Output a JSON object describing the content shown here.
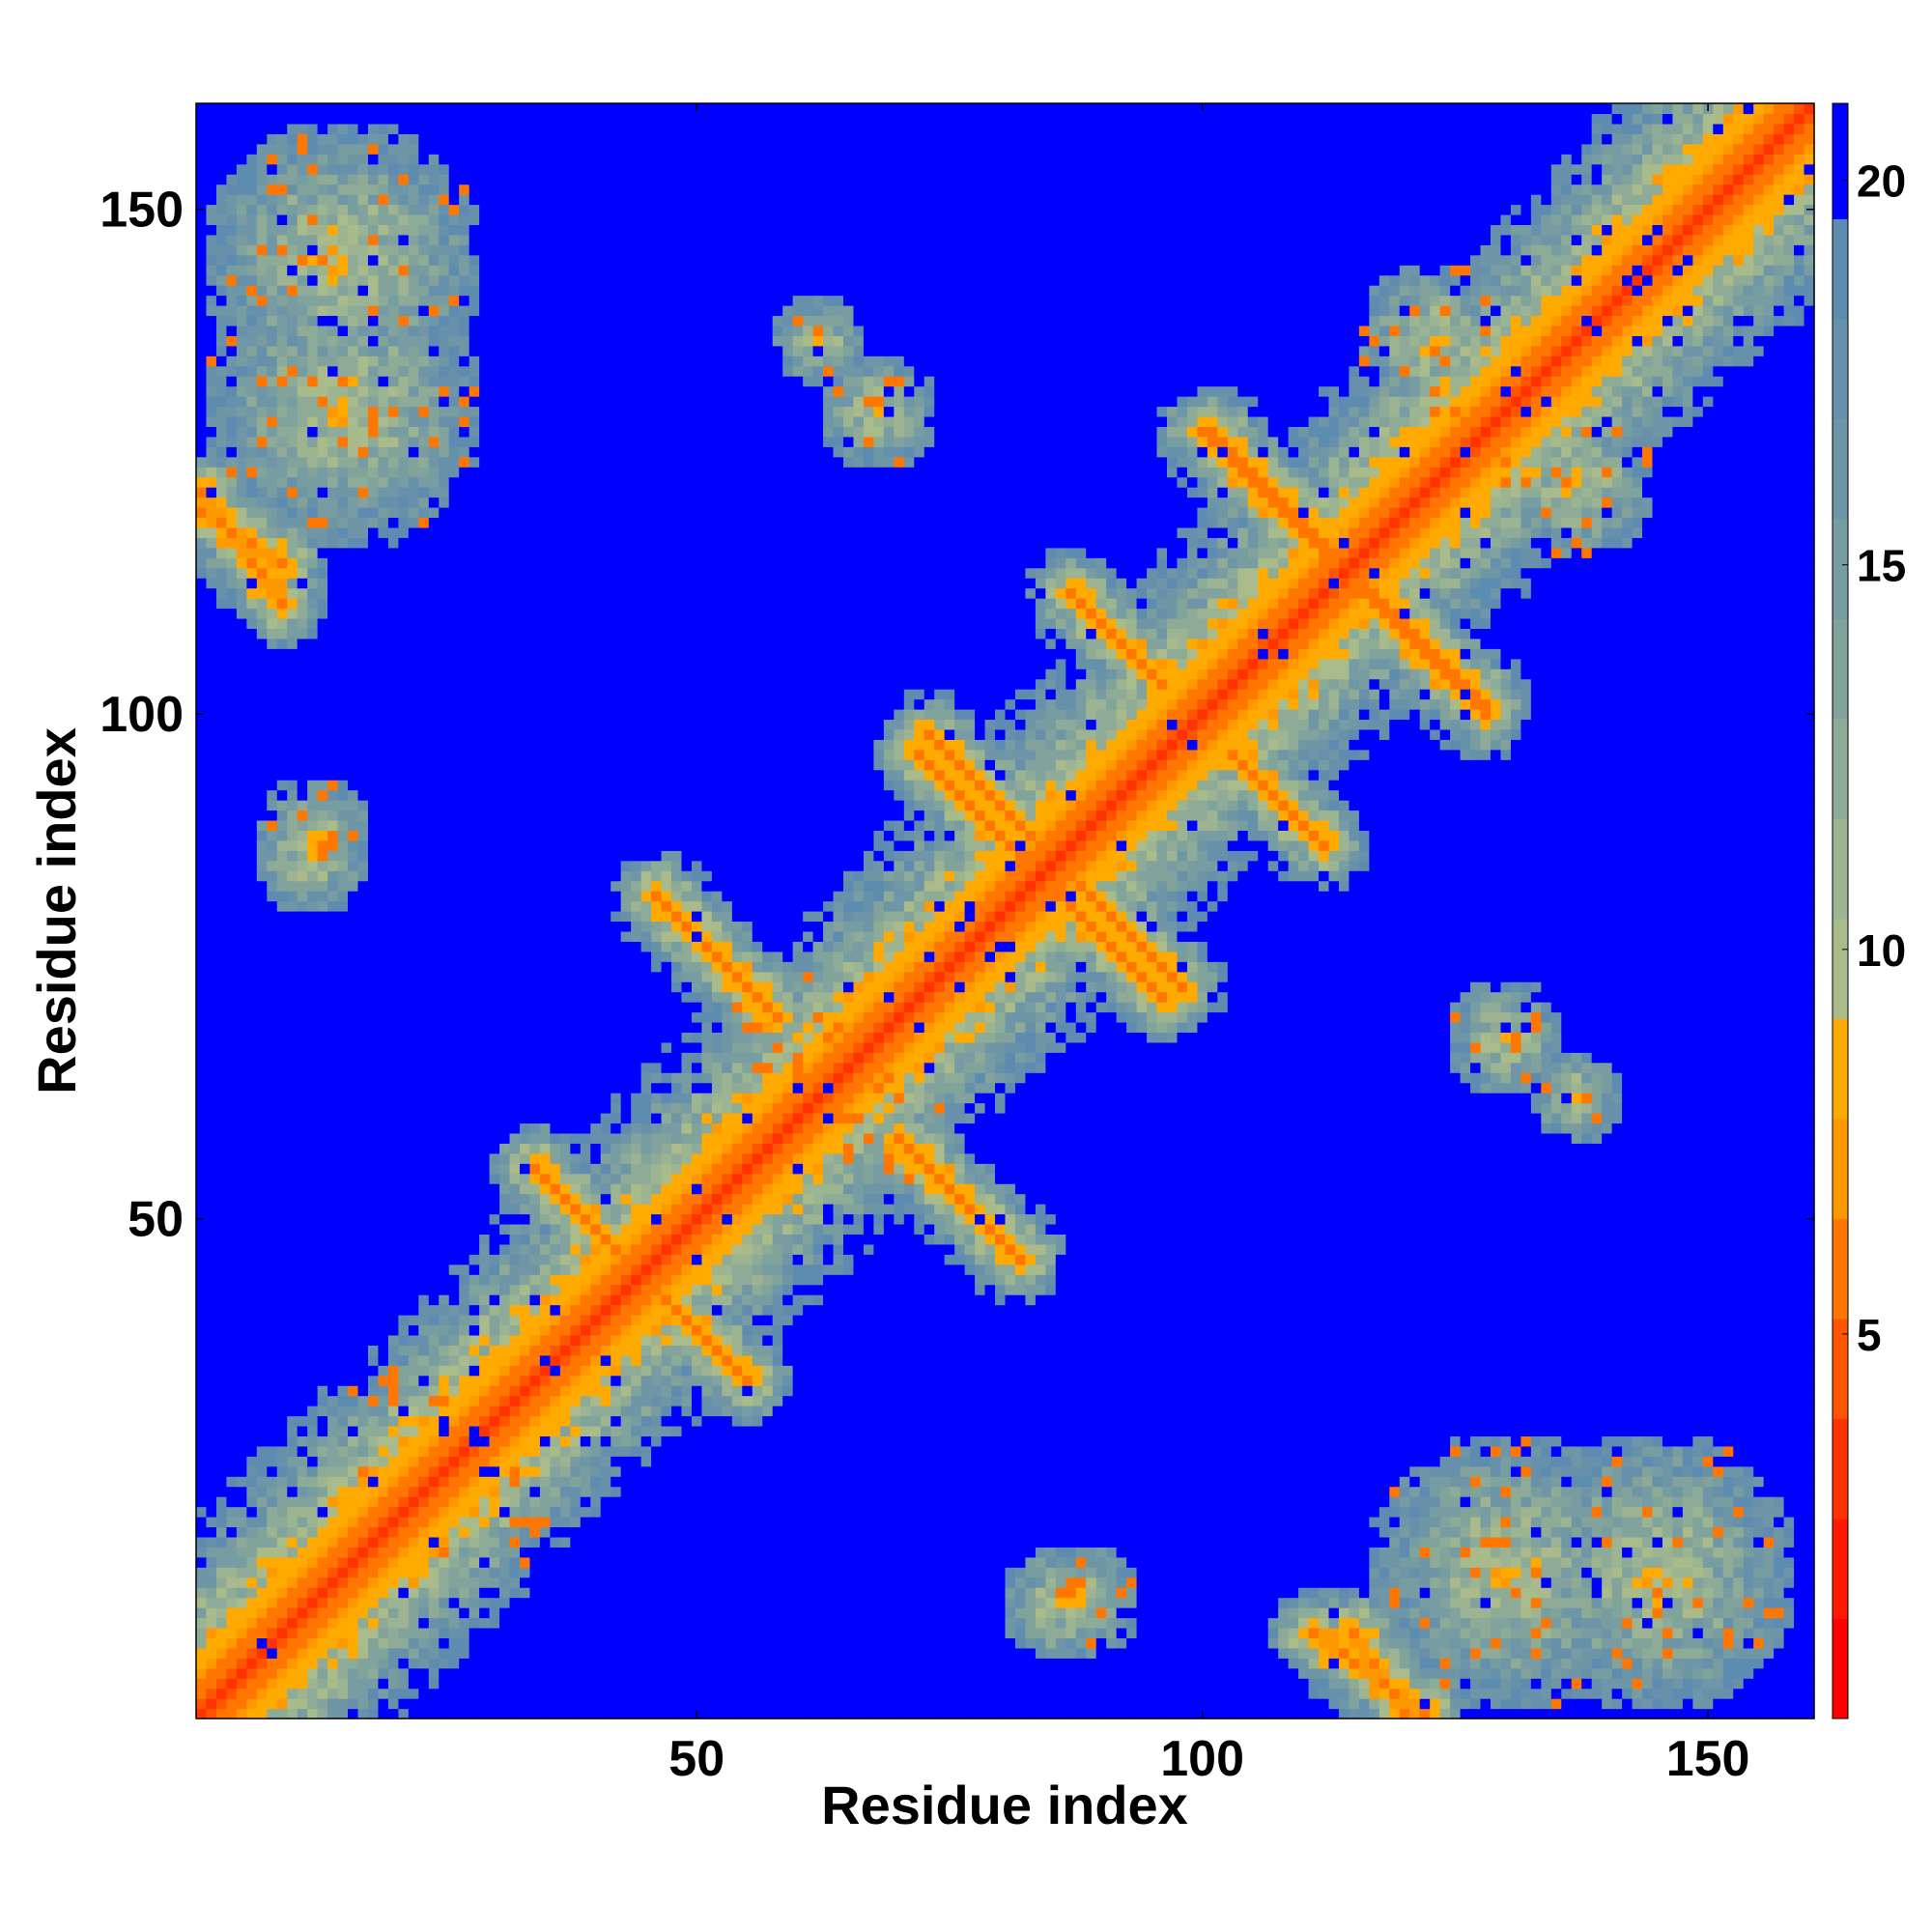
{
  "chart_data": {
    "type": "heatmap",
    "title": "",
    "xlabel": "Residue index",
    "ylabel": "Residue index",
    "n_residues": 160,
    "xlim": [
      1,
      160
    ],
    "ylim": [
      1,
      160
    ],
    "x_ticks": [
      50,
      100,
      150
    ],
    "y_ticks": [
      50,
      100,
      150
    ],
    "colorbar": {
      "range": [
        0,
        21
      ],
      "ticks": [
        5,
        10,
        15,
        20
      ],
      "levels": [
        {
          "max": 1.3,
          "color": "#ff0000"
        },
        {
          "max": 2.6,
          "color": "#ff1900"
        },
        {
          "max": 3.9,
          "color": "#ff3300"
        },
        {
          "max": 5.2,
          "color": "#ff5500"
        },
        {
          "max": 6.5,
          "color": "#ff7700"
        },
        {
          "max": 7.8,
          "color": "#ff9900"
        },
        {
          "max": 9.1,
          "color": "#ffaa00"
        },
        {
          "max": 10.4,
          "color": "#a9bb8a"
        },
        {
          "max": 11.7,
          "color": "#9cb491"
        },
        {
          "max": 13.0,
          "color": "#8eab97"
        },
        {
          "max": 14.3,
          "color": "#82a39c"
        },
        {
          "max": 15.6,
          "color": "#779ca1"
        },
        {
          "max": 16.9,
          "color": "#6f96a6"
        },
        {
          "max": 18.2,
          "color": "#6790aa"
        },
        {
          "max": 19.5,
          "color": "#5e8bb0"
        },
        {
          "max": 21.0,
          "color": "#0000ff"
        }
      ]
    },
    "diagonal": {
      "i_start": 1,
      "i_end": 160
    },
    "contact_segments": [
      {
        "x1": 34,
        "y1": 55,
        "x2": 54,
        "y2": 35
      },
      {
        "x1": 46,
        "y1": 82,
        "x2": 58,
        "y2": 70
      },
      {
        "x1": 72,
        "y1": 96,
        "x2": 85,
        "y2": 83
      },
      {
        "x1": 71,
        "y1": 57,
        "x2": 82,
        "y2": 46
      },
      {
        "x1": 87,
        "y1": 112,
        "x2": 96,
        "y2": 103
      },
      {
        "x1": 87,
        "y1": 84,
        "x2": 98,
        "y2": 73
      },
      {
        "x1": 101,
        "y1": 128,
        "x2": 114,
        "y2": 115
      },
      {
        "x1": 103,
        "y1": 96,
        "x2": 111,
        "y2": 88
      },
      {
        "x1": 116,
        "y1": 112,
        "x2": 128,
        "y2": 100
      },
      {
        "x1": 1,
        "y1": 120,
        "x2": 9,
        "y2": 115
      },
      {
        "x1": 111,
        "y1": 9,
        "x2": 122,
        "y2": 1
      }
    ],
    "contact_clusters": [
      {
        "x": 22,
        "y": 28,
        "r": 8
      },
      {
        "x": 15,
        "y": 145,
        "r": 14
      },
      {
        "x": 130,
        "y": 15,
        "r": 14
      },
      {
        "x": 60,
        "y": 68,
        "r": 7
      },
      {
        "x": 137,
        "y": 123,
        "r": 8
      },
      {
        "x": 62,
        "y": 137,
        "r": 5
      },
      {
        "x": 86,
        "y": 12,
        "r": 6
      },
      {
        "x": 12,
        "y": 88,
        "r": 6
      },
      {
        "x": 130,
        "y": 68,
        "r": 6
      },
      {
        "x": 68,
        "y": 130,
        "r": 5
      }
    ]
  }
}
